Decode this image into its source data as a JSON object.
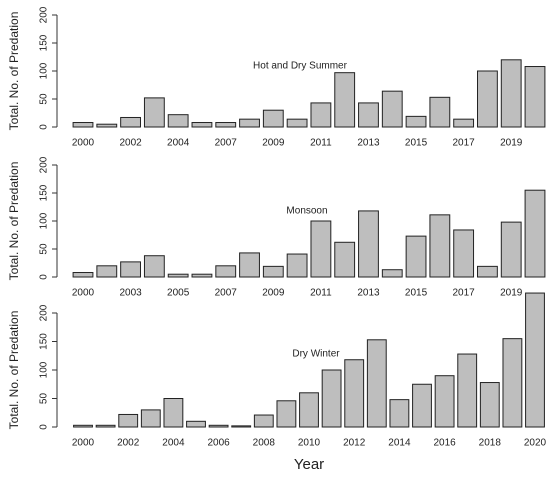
{
  "chart_data": [
    {
      "type": "bar",
      "title": "Hot and Dry Summer",
      "y_label": "Total. No. of Predation",
      "categories": [
        "2000",
        null,
        "2002",
        null,
        "2004",
        null,
        "2007",
        null,
        "2009",
        null,
        "2011",
        null,
        "2013",
        null,
        "2015",
        null,
        "2017",
        null,
        "2019",
        null
      ],
      "values": [
        8,
        5,
        17,
        52,
        22,
        8,
        8,
        14,
        30,
        14,
        43,
        97,
        43,
        64,
        19,
        53,
        14,
        100,
        120,
        108
      ],
      "color": "#bebebe",
      "ylim": [
        0,
        200
      ],
      "yticks": [
        0,
        50,
        100,
        150,
        200
      ]
    },
    {
      "type": "bar",
      "title": "Monsoon",
      "y_label": "Total. No. of Predation",
      "categories": [
        "2000",
        null,
        "2003",
        null,
        "2005",
        null,
        "2007",
        null,
        "2009",
        null,
        "2011",
        null,
        "2013",
        null,
        "2015",
        null,
        "2017",
        null,
        "2019",
        null
      ],
      "values": [
        8,
        20,
        27,
        38,
        5,
        5,
        20,
        43,
        19,
        41,
        100,
        62,
        118,
        13,
        73,
        111,
        84,
        19,
        98,
        155
      ],
      "color": "#bebebe",
      "ylim": [
        0,
        200
      ],
      "yticks": [
        0,
        50,
        100,
        150,
        200
      ]
    },
    {
      "type": "bar",
      "title": "Dry Winter",
      "y_label": "Total. No. of Predation",
      "x_label": "Year",
      "categories": [
        "2000",
        null,
        "2002",
        null,
        "2004",
        null,
        "2006",
        null,
        "2008",
        null,
        "2010",
        null,
        "2012",
        null,
        "2014",
        null,
        "2016",
        null,
        "2018",
        null,
        "2020"
      ],
      "values": [
        3,
        3,
        22,
        30,
        50,
        10,
        3,
        2,
        21,
        46,
        60,
        100,
        118,
        153,
        48,
        75,
        90,
        128,
        78,
        155,
        235
      ],
      "color": "#bebebe",
      "ylim": [
        0,
        235
      ],
      "yticks": [
        0,
        50,
        100,
        150,
        200
      ]
    }
  ]
}
